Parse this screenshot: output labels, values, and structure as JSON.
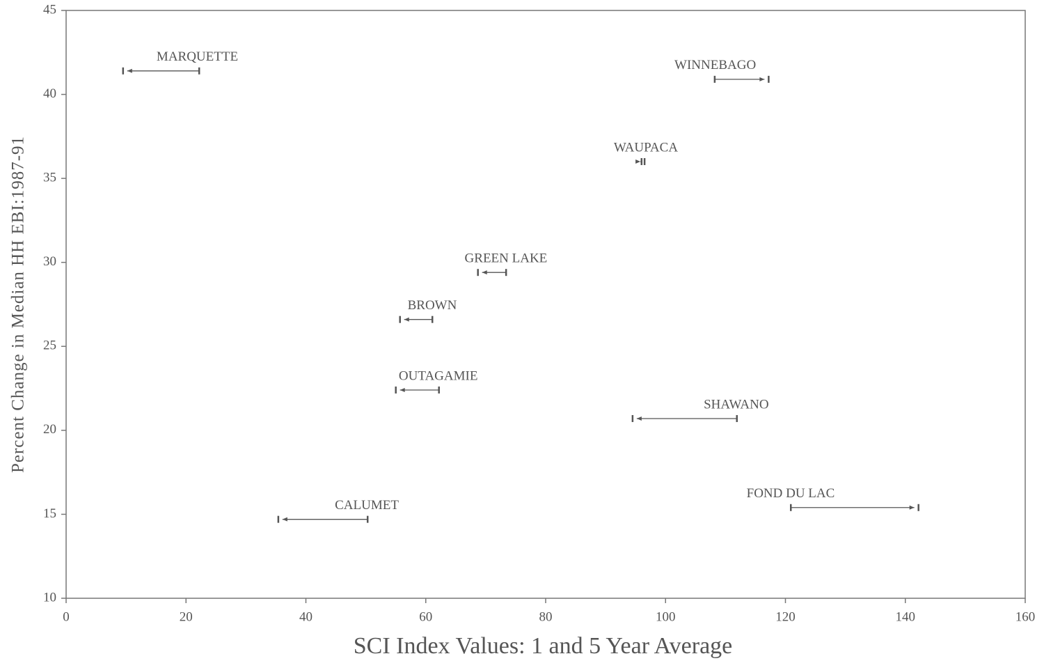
{
  "chart_data": {
    "type": "arrow",
    "xlabel": "SCI Index Values: 1 and 5 Year Average",
    "ylabel": "Percent Change in Median HH EBI:1987-91",
    "categories": [
      "MARQUETTE",
      "WINNEBAGO",
      "WAUPACA",
      "GREEN LAKE",
      "BROWN",
      "OUTAGAMIE",
      "SHAWANO",
      "CALUMET",
      "FOND DU LAC"
    ],
    "y": [
      41.4,
      40.9,
      36.0,
      29.4,
      26.6,
      22.4,
      20.7,
      14.7,
      15.4
    ],
    "x_start": [
      22.2,
      108.2,
      96.0,
      73.4,
      61.1,
      62.2,
      111.9,
      50.3,
      120.9
    ],
    "x_end": [
      9.5,
      117.2,
      96.5,
      68.7,
      55.7,
      55.0,
      94.5,
      35.4,
      142.2
    ],
    "color": "#555555",
    "xlim": [
      0,
      160
    ],
    "xticks": [
      0,
      20,
      40,
      60,
      80,
      100,
      120,
      140,
      160
    ],
    "ylim": [
      10,
      45
    ],
    "yticks": [
      10,
      15,
      20,
      25,
      30,
      35,
      40,
      45
    ]
  }
}
